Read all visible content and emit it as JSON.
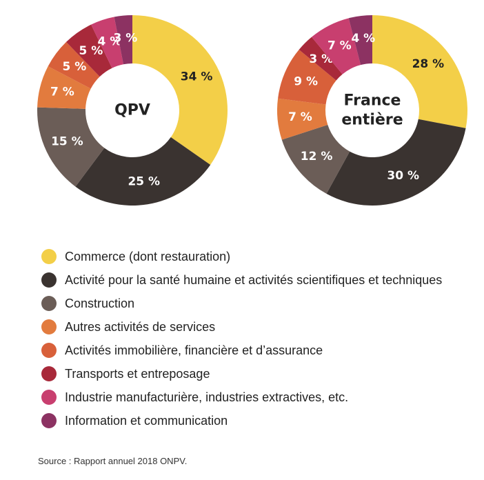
{
  "chart_data": {
    "type": "pie",
    "legend_position": "bottom",
    "categories": [
      "Commerce (dont restauration)",
      "Activité pour la santé humaine et activités scientifiques et techniques",
      "Construction",
      "Autres activités de services",
      "Activités immobilière, financière et d’assurance",
      "Transports et entreposage",
      "Industrie manufacturière, industries extractives, etc.",
      "Information et communication"
    ],
    "colors": [
      "#f3cf48",
      "#3a3330",
      "#6b5d57",
      "#e27b3e",
      "#d8603a",
      "#a8293a",
      "#c83f6f",
      "#8c3262"
    ],
    "label_colors": [
      "#222222",
      "#ffffff",
      "#ffffff",
      "#ffffff",
      "#ffffff",
      "#ffffff",
      "#ffffff",
      "#ffffff"
    ],
    "series": [
      {
        "name": "QPV",
        "values": [
          34,
          25,
          15,
          7,
          5,
          5,
          4,
          3
        ],
        "labels": [
          "34 %",
          "25 %",
          "15 %",
          "7 %",
          "5 %",
          "5 %",
          "4 %",
          "3 %"
        ]
      },
      {
        "name": "France entière",
        "values": [
          28,
          30,
          12,
          7,
          9,
          3,
          7,
          4
        ],
        "labels": [
          "28 %",
          "30 %",
          "12 %",
          "7 %",
          "9 %",
          "3 %",
          "7 %",
          "4 %"
        ]
      }
    ]
  },
  "center_labels": [
    [
      "QPV"
    ],
    [
      "France",
      "entière"
    ]
  ],
  "source": "Source : Rapport annuel 2018 ONPV."
}
